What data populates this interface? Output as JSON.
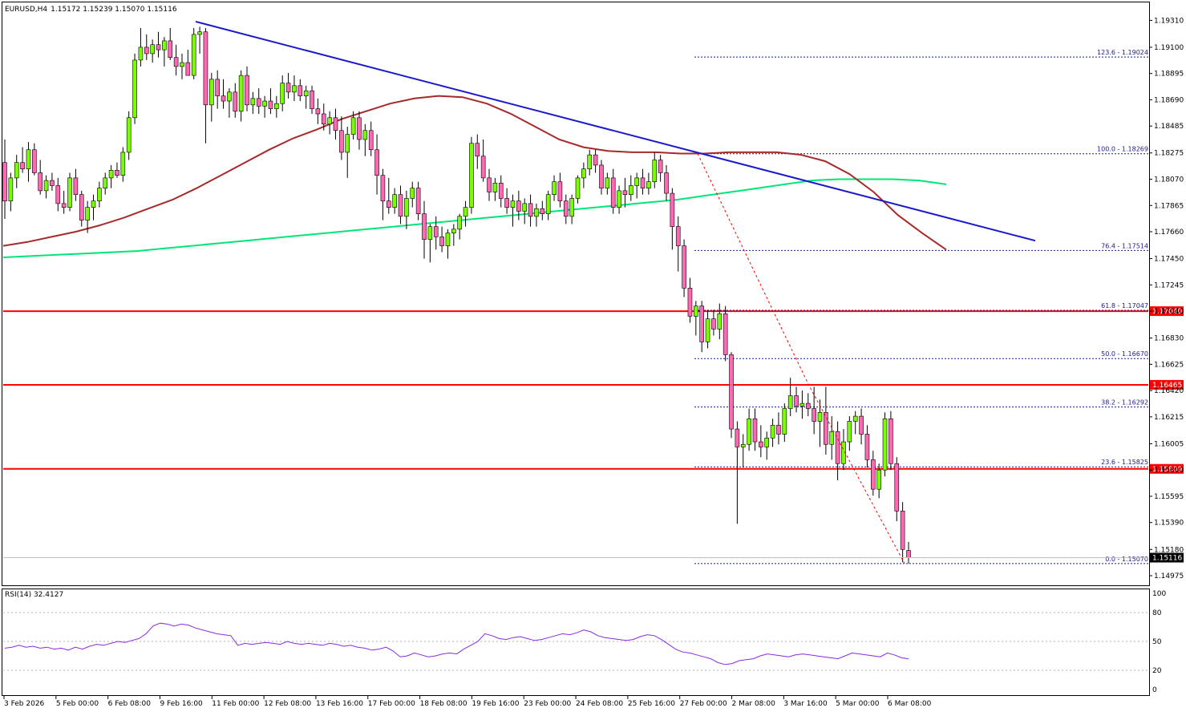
{
  "header": {
    "symbol": "EURUSD,H4",
    "ohlc": "1.15172 1.15239 1.15070 1.15116"
  },
  "rsi_panel": {
    "label": "RSI(14) 32.4127",
    "scale_labels": [
      "100",
      "80",
      "50",
      "20",
      "0"
    ]
  },
  "chart_data": {
    "type": "candlestick",
    "symbol": "EURUSD",
    "timeframe": "H4",
    "price_axis": {
      "ylim": [
        1.1488,
        1.195
      ],
      "tick_labels": [
        "1.19310",
        "1.19100",
        "1.18895",
        "1.18690",
        "1.18485",
        "1.18275",
        "1.18070",
        "1.17865",
        "1.17660",
        "1.17450",
        "1.17245",
        "1.17040",
        "1.16830",
        "1.16625",
        "1.16420",
        "1.16215",
        "1.16005",
        "1.15800",
        "1.15595",
        "1.15390",
        "1.15180",
        "1.14975"
      ]
    },
    "time_axis": {
      "tick_labels": [
        "3 Feb 2026",
        "5 Feb 00:00",
        "6 Feb 08:00",
        "9 Feb 16:00",
        "11 Feb 00:00",
        "12 Feb 08:00",
        "13 Feb 16:00",
        "17 Feb 00:00",
        "18 Feb 08:00",
        "19 Feb 16:00",
        "23 Feb 00:00",
        "24 Feb 08:00",
        "25 Feb 16:00",
        "27 Feb 00:00",
        "2 Mar 08:00",
        "3 Mar 16:00",
        "5 Mar 00:00",
        "6 Mar 08:00"
      ]
    },
    "candles": [
      [
        1.182,
        1.1838,
        1.1776,
        1.179
      ],
      [
        1.179,
        1.1812,
        1.1782,
        1.1808
      ],
      [
        1.1808,
        1.1826,
        1.18,
        1.182
      ],
      [
        1.182,
        1.1832,
        1.1812,
        1.1815
      ],
      [
        1.1815,
        1.1836,
        1.1805,
        1.183
      ],
      [
        1.183,
        1.1835,
        1.181,
        1.1812
      ],
      [
        1.1812,
        1.1822,
        1.1795,
        1.1798
      ],
      [
        1.1798,
        1.181,
        1.1792,
        1.1806
      ],
      [
        1.1806,
        1.1812,
        1.1798,
        1.1802
      ],
      [
        1.1802,
        1.1808,
        1.1782,
        1.1788
      ],
      [
        1.1788,
        1.1798,
        1.178,
        1.1785
      ],
      [
        1.1785,
        1.1812,
        1.1782,
        1.1808
      ],
      [
        1.1808,
        1.1815,
        1.179,
        1.1795
      ],
      [
        1.1795,
        1.1798,
        1.177,
        1.1775
      ],
      [
        1.1775,
        1.179,
        1.1765,
        1.1785
      ],
      [
        1.1785,
        1.1795,
        1.1775,
        1.179
      ],
      [
        1.179,
        1.1805,
        1.1785,
        1.18
      ],
      [
        1.18,
        1.1812,
        1.1795,
        1.1808
      ],
      [
        1.1808,
        1.1818,
        1.18,
        1.1814
      ],
      [
        1.1814,
        1.182,
        1.1808,
        1.181
      ],
      [
        1.181,
        1.1832,
        1.1805,
        1.1828
      ],
      [
        1.1828,
        1.186,
        1.1822,
        1.1855
      ],
      [
        1.1855,
        1.1905,
        1.185,
        1.19
      ],
      [
        1.19,
        1.1925,
        1.1895,
        1.191
      ],
      [
        1.191,
        1.192,
        1.19,
        1.1905
      ],
      [
        1.1905,
        1.1916,
        1.1898,
        1.1912
      ],
      [
        1.1912,
        1.1922,
        1.1902,
        1.1908
      ],
      [
        1.1908,
        1.1918,
        1.1895,
        1.1915
      ],
      [
        1.1915,
        1.1925,
        1.19,
        1.1902
      ],
      [
        1.1902,
        1.1912,
        1.1888,
        1.1895
      ],
      [
        1.1895,
        1.1905,
        1.1885,
        1.1898
      ],
      [
        1.1898,
        1.1908,
        1.189,
        1.1888
      ],
      [
        1.1888,
        1.1925,
        1.1885,
        1.192
      ],
      [
        1.192,
        1.1926,
        1.1905,
        1.1922
      ],
      [
        1.1922,
        1.1925,
        1.1835,
        1.1865
      ],
      [
        1.1865,
        1.189,
        1.1852,
        1.1885
      ],
      [
        1.1885,
        1.1892,
        1.1862,
        1.1872
      ],
      [
        1.1872,
        1.1885,
        1.1862,
        1.1868
      ],
      [
        1.1868,
        1.1878,
        1.1855,
        1.1875
      ],
      [
        1.1875,
        1.1882,
        1.1855,
        1.186
      ],
      [
        1.186,
        1.1892,
        1.1852,
        1.1888
      ],
      [
        1.1888,
        1.1895,
        1.186,
        1.1865
      ],
      [
        1.1865,
        1.1875,
        1.1858,
        1.187
      ],
      [
        1.187,
        1.1878,
        1.1858,
        1.1864
      ],
      [
        1.1864,
        1.1872,
        1.1855,
        1.1868
      ],
      [
        1.1868,
        1.1878,
        1.1858,
        1.1862
      ],
      [
        1.1862,
        1.1872,
        1.1855,
        1.1866
      ],
      [
        1.1866,
        1.1888,
        1.186,
        1.1882
      ],
      [
        1.1882,
        1.189,
        1.187,
        1.1875
      ],
      [
        1.1875,
        1.1888,
        1.1868,
        1.188
      ],
      [
        1.188,
        1.1885,
        1.1868,
        1.1872
      ],
      [
        1.1872,
        1.188,
        1.1862,
        1.1876
      ],
      [
        1.1876,
        1.188,
        1.1858,
        1.1862
      ],
      [
        1.1862,
        1.187,
        1.185,
        1.1858
      ],
      [
        1.1858,
        1.1866,
        1.1845,
        1.185
      ],
      [
        1.185,
        1.186,
        1.1842,
        1.1855
      ],
      [
        1.1855,
        1.1862,
        1.1838,
        1.1845
      ],
      [
        1.1845,
        1.1856,
        1.1822,
        1.1828
      ],
      [
        1.1828,
        1.1848,
        1.1808,
        1.1842
      ],
      [
        1.1842,
        1.186,
        1.1838,
        1.1855
      ],
      [
        1.1855,
        1.186,
        1.183,
        1.1838
      ],
      [
        1.1838,
        1.185,
        1.1825,
        1.1845
      ],
      [
        1.1845,
        1.1852,
        1.1825,
        1.183
      ],
      [
        1.183,
        1.1842,
        1.1795,
        1.181
      ],
      [
        1.181,
        1.1815,
        1.1775,
        1.179
      ],
      [
        1.179,
        1.1808,
        1.178,
        1.1785
      ],
      [
        1.1785,
        1.18,
        1.178,
        1.1795
      ],
      [
        1.1795,
        1.1802,
        1.1772,
        1.1778
      ],
      [
        1.1778,
        1.1798,
        1.1768,
        1.1792
      ],
      [
        1.1792,
        1.1805,
        1.1785,
        1.18
      ],
      [
        1.18,
        1.1805,
        1.1775,
        1.178
      ],
      [
        1.178,
        1.179,
        1.1745,
        1.176
      ],
      [
        1.176,
        1.1772,
        1.1742,
        1.177
      ],
      [
        1.177,
        1.1778,
        1.1752,
        1.1762
      ],
      [
        1.1762,
        1.177,
        1.175,
        1.1755
      ],
      [
        1.1755,
        1.1768,
        1.1745,
        1.1765
      ],
      [
        1.1765,
        1.1772,
        1.1755,
        1.1768
      ],
      [
        1.1768,
        1.178,
        1.176,
        1.1778
      ],
      [
        1.1778,
        1.179,
        1.177,
        1.1785
      ],
      [
        1.1785,
        1.184,
        1.178,
        1.1835
      ],
      [
        1.1835,
        1.1842,
        1.1815,
        1.1825
      ],
      [
        1.1825,
        1.1838,
        1.1805,
        1.1808
      ],
      [
        1.1808,
        1.1815,
        1.179,
        1.1797
      ],
      [
        1.1797,
        1.1808,
        1.179,
        1.1804
      ],
      [
        1.1804,
        1.181,
        1.1785,
        1.1792
      ],
      [
        1.1792,
        1.18,
        1.178,
        1.1785
      ],
      [
        1.1785,
        1.1795,
        1.177,
        1.179
      ],
      [
        1.179,
        1.1798,
        1.1775,
        1.1782
      ],
      [
        1.1782,
        1.1792,
        1.1772,
        1.1788
      ],
      [
        1.1788,
        1.1795,
        1.177,
        1.1778
      ],
      [
        1.1778,
        1.1788,
        1.177,
        1.1784
      ],
      [
        1.1784,
        1.179,
        1.1775,
        1.178
      ],
      [
        1.178,
        1.1798,
        1.1775,
        1.1795
      ],
      [
        1.1795,
        1.181,
        1.179,
        1.1805
      ],
      [
        1.1805,
        1.1812,
        1.1785,
        1.179
      ],
      [
        1.179,
        1.1795,
        1.1772,
        1.1778
      ],
      [
        1.1778,
        1.1795,
        1.1772,
        1.1792
      ],
      [
        1.1792,
        1.181,
        1.1788,
        1.1808
      ],
      [
        1.1808,
        1.182,
        1.18,
        1.1815
      ],
      [
        1.1815,
        1.183,
        1.181,
        1.1826
      ],
      [
        1.1826,
        1.183,
        1.1812,
        1.1818
      ],
      [
        1.1818,
        1.1822,
        1.1795,
        1.18
      ],
      [
        1.18,
        1.1812,
        1.1795,
        1.1808
      ],
      [
        1.1808,
        1.1815,
        1.178,
        1.1785
      ],
      [
        1.1785,
        1.1802,
        1.178,
        1.1798
      ],
      [
        1.1798,
        1.1808,
        1.1785,
        1.1795
      ],
      [
        1.1795,
        1.181,
        1.179,
        1.1802
      ],
      [
        1.1802,
        1.1812,
        1.1792,
        1.1808
      ],
      [
        1.1808,
        1.1815,
        1.1795,
        1.18
      ],
      [
        1.18,
        1.1812,
        1.1795,
        1.1805
      ],
      [
        1.1805,
        1.1828,
        1.18,
        1.1822
      ],
      [
        1.1822,
        1.1826,
        1.1805,
        1.1812
      ],
      [
        1.1812,
        1.1818,
        1.179,
        1.1796
      ],
      [
        1.1796,
        1.18,
        1.1752,
        1.177
      ],
      [
        1.177,
        1.1778,
        1.1735,
        1.1755
      ],
      [
        1.1755,
        1.176,
        1.1715,
        1.1722
      ],
      [
        1.1722,
        1.173,
        1.1695,
        1.17
      ],
      [
        1.17,
        1.1712,
        1.1685,
        1.1708
      ],
      [
        1.1708,
        1.1712,
        1.1672,
        1.168
      ],
      [
        1.168,
        1.1705,
        1.1675,
        1.1698
      ],
      [
        1.1698,
        1.1705,
        1.1685,
        1.169
      ],
      [
        1.169,
        1.171,
        1.1682,
        1.1702
      ],
      [
        1.1702,
        1.1708,
        1.1665,
        1.167
      ],
      [
        1.167,
        1.1672,
        1.1605,
        1.1612
      ],
      [
        1.1612,
        1.1618,
        1.1538,
        1.1598
      ],
      [
        1.1598,
        1.1608,
        1.1582,
        1.16
      ],
      [
        1.16,
        1.1628,
        1.1595,
        1.162
      ],
      [
        1.162,
        1.1628,
        1.1595,
        1.1602
      ],
      [
        1.1602,
        1.1615,
        1.159,
        1.1598
      ],
      [
        1.1598,
        1.161,
        1.1588,
        1.1605
      ],
      [
        1.1605,
        1.162,
        1.1598,
        1.1615
      ],
      [
        1.1615,
        1.1625,
        1.16,
        1.1608
      ],
      [
        1.1608,
        1.1632,
        1.1602,
        1.1628
      ],
      [
        1.1628,
        1.1652,
        1.1622,
        1.1638
      ],
      [
        1.1638,
        1.1645,
        1.1625,
        1.163
      ],
      [
        1.163,
        1.1642,
        1.162,
        1.1632
      ],
      [
        1.1632,
        1.164,
        1.1622,
        1.1628
      ],
      [
        1.1628,
        1.1645,
        1.1608,
        1.1618
      ],
      [
        1.1618,
        1.1635,
        1.1598,
        1.1625
      ],
      [
        1.1625,
        1.1645,
        1.1592,
        1.16
      ],
      [
        1.16,
        1.1622,
        1.1588,
        1.161
      ],
      [
        1.161,
        1.1618,
        1.1572,
        1.1585
      ],
      [
        1.1585,
        1.1612,
        1.158,
        1.1602
      ],
      [
        1.1602,
        1.1622,
        1.1595,
        1.1618
      ],
      [
        1.1618,
        1.1626,
        1.1608,
        1.1622
      ],
      [
        1.1622,
        1.1628,
        1.16,
        1.1608
      ],
      [
        1.1608,
        1.1615,
        1.1582,
        1.1588
      ],
      [
        1.1588,
        1.1595,
        1.156,
        1.1565
      ],
      [
        1.1565,
        1.1585,
        1.1558,
        1.158
      ],
      [
        1.158,
        1.1625,
        1.1575,
        1.162
      ],
      [
        1.162,
        1.1626,
        1.158,
        1.1585
      ],
      [
        1.1585,
        1.159,
        1.154,
        1.1548
      ],
      [
        1.1548,
        1.1555,
        1.1508,
        1.1518
      ],
      [
        1.15172,
        1.15239,
        1.1507,
        1.15116
      ]
    ],
    "ma_red": [
      1.1755,
      1.1758,
      1.1762,
      1.1766,
      1.1771,
      1.1777,
      1.1784,
      1.1791,
      1.18,
      1.181,
      1.182,
      1.183,
      1.1839,
      1.1846,
      1.1854,
      1.186,
      1.1866,
      1.187,
      1.1872,
      1.1871,
      1.1866,
      1.1858,
      1.1848,
      1.1838,
      1.1832,
      1.1829,
      1.1828,
      1.1828,
      1.1827,
      1.1827,
      1.1828,
      1.1828,
      1.1828,
      1.1826,
      1.1821,
      1.1811,
      1.1797,
      1.1779,
      1.1765,
      1.1752
    ],
    "ma_green": [
      1.1746,
      1.1747,
      1.1748,
      1.1749,
      1.175,
      1.1751,
      1.1753,
      1.1755,
      1.1757,
      1.1759,
      1.1761,
      1.1763,
      1.1765,
      1.1767,
      1.1769,
      1.1771,
      1.1773,
      1.1775,
      1.1777,
      1.1779,
      1.1781,
      1.1783,
      1.1785,
      1.1787,
      1.1789,
      1.1791,
      1.1794,
      1.1797,
      1.18,
      1.1803,
      1.1806,
      1.1807,
      1.1807,
      1.1807,
      1.1806,
      1.1803
    ],
    "trend_line": {
      "from": [
        1.193
      ],
      "to": [
        1.1759
      ],
      "color": "#1a1acc"
    },
    "horizontal_levels": [
      {
        "value": 1.1704,
        "label": "1.17040",
        "color": "#ff0000"
      },
      {
        "value": 1.16465,
        "label": "1.16465",
        "color": "#ff0000"
      },
      {
        "value": 1.15809,
        "label": "1.15809",
        "color": "#ff0000"
      }
    ],
    "fibonacci": [
      {
        "label": "123.6 - 1.19024",
        "value": 1.19024
      },
      {
        "label": "100.0 - 1.18269",
        "value": 1.18269
      },
      {
        "label": "76.4 - 1.17514",
        "value": 1.17514
      },
      {
        "label": "61.8 - 1.17047",
        "value": 1.17047
      },
      {
        "label": "50.0 - 1.16670",
        "value": 1.1667
      },
      {
        "label": "38.2 - 1.16292",
        "value": 1.16292
      },
      {
        "label": "23.6 - 1.15825",
        "value": 1.15825
      },
      {
        "label": "0.0 - 1.15070",
        "value": 1.1507
      }
    ],
    "current_price": {
      "value": 1.15116,
      "label": "1.15116"
    },
    "rsi": [
      43,
      44,
      46,
      44,
      45,
      43,
      44,
      42,
      43,
      41,
      44,
      42,
      45,
      47,
      46,
      48,
      50,
      49,
      51,
      53,
      58,
      66,
      69,
      68,
      66,
      68,
      67,
      64,
      62,
      60,
      58,
      57,
      56,
      46,
      48,
      47,
      48,
      49,
      48,
      47,
      50,
      48,
      47,
      48,
      47,
      46,
      48,
      47,
      45,
      46,
      44,
      43,
      41,
      42,
      44,
      40,
      34,
      35,
      38,
      36,
      34,
      35,
      37,
      38,
      37,
      42,
      46,
      50,
      58,
      56,
      53,
      52,
      54,
      55,
      53,
      51,
      52,
      54,
      56,
      58,
      57,
      59,
      62,
      60,
      56,
      54,
      53,
      52,
      51,
      52,
      55,
      57,
      56,
      52,
      47,
      42,
      39,
      38,
      36,
      34,
      32,
      28,
      26,
      27,
      30,
      31,
      32,
      35,
      37,
      36,
      35,
      34,
      36,
      37,
      36,
      35,
      34,
      33,
      32,
      35,
      38,
      37,
      36,
      35,
      34,
      38,
      36,
      33,
      32
    ]
  }
}
